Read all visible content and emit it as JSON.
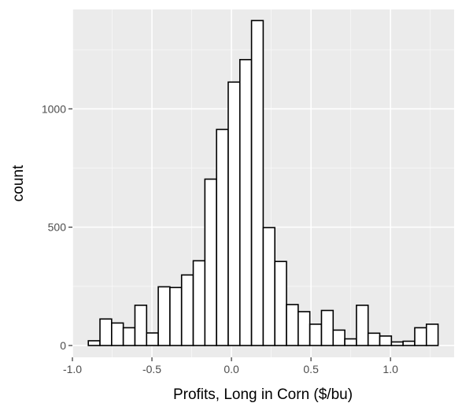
{
  "chart_data": {
    "type": "bar",
    "subtype": "histogram",
    "xlabel": "Profits, Long in Corn ($/bu)",
    "ylabel": "count",
    "xlim": [
      -1.0,
      1.4
    ],
    "ylim": [
      -50,
      1420
    ],
    "xticks": [
      -1.0,
      -0.5,
      0.0,
      0.5,
      1.0
    ],
    "xtick_labels": [
      "-1.0",
      "-0.5",
      "0.0",
      "0.5",
      "1.0"
    ],
    "yticks": [
      0,
      500,
      1000
    ],
    "ytick_labels": [
      "0",
      "500",
      "1000"
    ],
    "bin_width": 0.0733,
    "bin_start": -0.9,
    "values": [
      20,
      112,
      95,
      75,
      170,
      53,
      248,
      245,
      298,
      358,
      703,
      913,
      1113,
      1208,
      1373,
      498,
      355,
      173,
      143,
      90,
      148,
      65,
      28,
      170,
      52,
      40,
      15,
      18,
      75,
      90
    ],
    "grid": true,
    "panel_color": "#ebebeb",
    "bar_fill": "#ffffff",
    "bar_stroke": "#000000"
  }
}
